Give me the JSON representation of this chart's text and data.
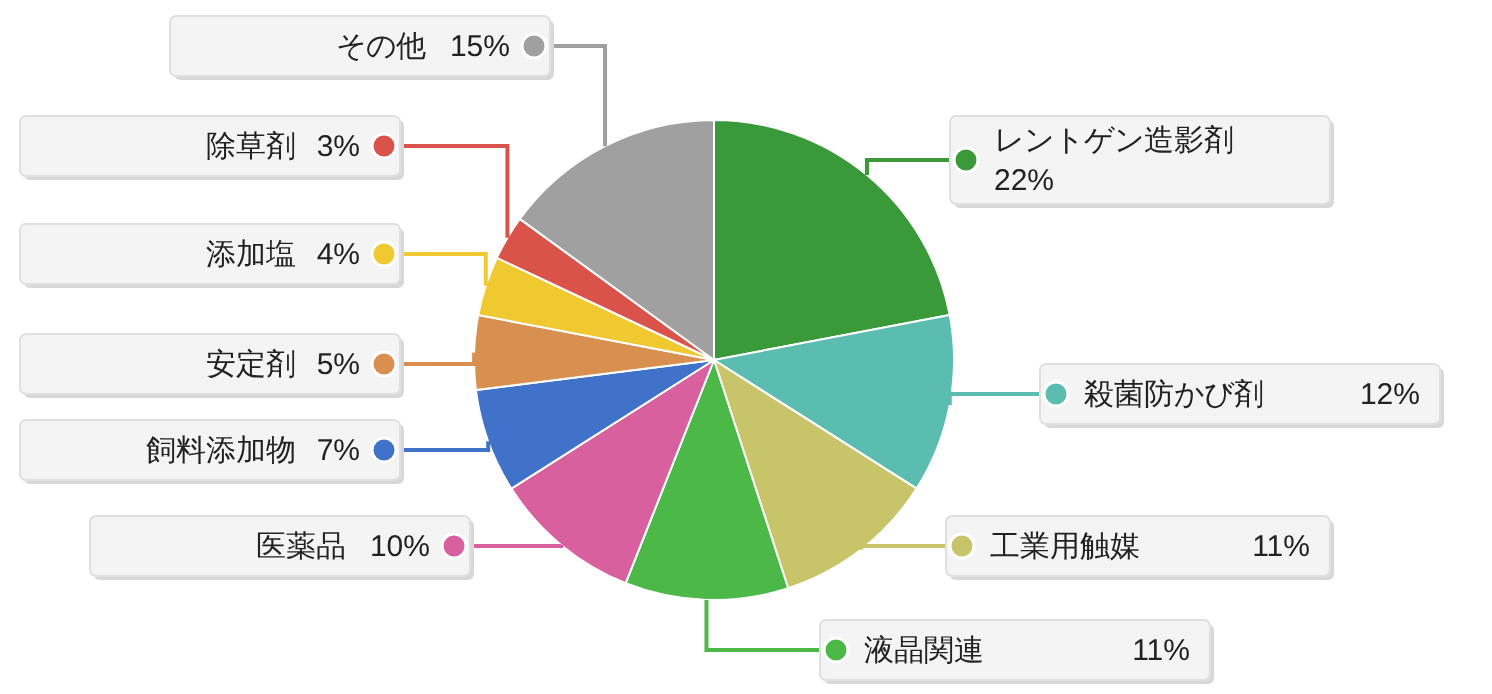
{
  "chart_data": {
    "type": "pie",
    "legend": "right",
    "categories": [
      "レントゲン造影剤",
      "殺菌防かび剤",
      "工業用触媒",
      "液晶関連",
      "医薬品",
      "飼料添加物",
      "安定剤",
      "添加塩",
      "除草剤",
      "その他"
    ],
    "values": [
      22,
      12,
      11,
      11,
      10,
      7,
      5,
      4,
      3,
      15
    ],
    "value_labels": [
      "22%",
      "12%",
      "11%",
      "11%",
      "10%",
      "7%",
      "5%",
      "4%",
      "3%",
      "15%"
    ],
    "colors": [
      "#3a9a3a",
      "#5bbcb0",
      "#c8c46a",
      "#4cb848",
      "#d9609f",
      "#3f72c8",
      "#d98f50",
      "#f0c830",
      "#d9534a",
      "#a0a0a0"
    ]
  }
}
